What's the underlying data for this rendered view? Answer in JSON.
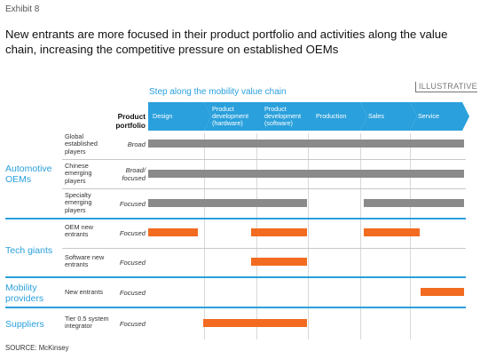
{
  "exhibit": "Exhibit 8",
  "title": "New entrants are more focused in their product portfolio and activities along the value chain, increasing the competitive pressure on established OEMs",
  "illustrative": "ILLUSTRATIVE",
  "chain_label": "Step along the mobility value chain",
  "portfolio_header": "Product portfolio",
  "steps": [
    {
      "label": "Design"
    },
    {
      "label": "Product development (hardware)"
    },
    {
      "label": "Product development (software)"
    },
    {
      "label": "Production"
    },
    {
      "label": "Sales"
    },
    {
      "label": "Service"
    }
  ],
  "groups": [
    {
      "label": "Automotive OEMs",
      "color": "#2aa0dc"
    },
    {
      "label": "Tech giants",
      "color": "#2aa0dc"
    },
    {
      "label": "Mobility providers",
      "color": "#2aa0dc"
    },
    {
      "label": "Suppliers",
      "color": "#2aa0dc"
    }
  ],
  "rows": [
    {
      "player": "Global established players",
      "portfolio": "Broad",
      "color": "#8a8a8a"
    },
    {
      "player": "Chinese emerging players",
      "portfolio": "Broad/ focused",
      "color": "#8a8a8a"
    },
    {
      "player": "Specialty emerging players",
      "portfolio": "Focused",
      "color": "#8a8a8a"
    },
    {
      "player": "OEM new entrants",
      "portfolio": "Focused",
      "color": "#f26b21"
    },
    {
      "player": "Software new entrants",
      "portfolio": "Focused",
      "color": "#f26b21"
    },
    {
      "player": "New entrants",
      "portfolio": "Focused",
      "color": "#f26b21"
    },
    {
      "player": "Tier 0.5 system integrator",
      "portfolio": "Focused",
      "color": "#f26b21"
    }
  ],
  "source": "SOURCE: McKinsey"
}
